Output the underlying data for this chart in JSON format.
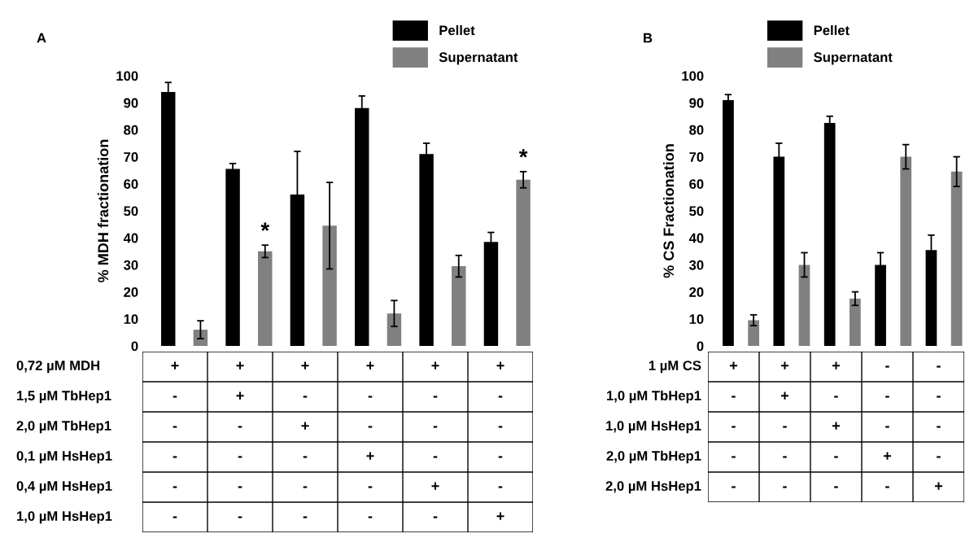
{
  "chart_data": [
    {
      "type": "bar",
      "title": "A",
      "ylabel": "% MDH fractionation",
      "categories": [
        null,
        null,
        null,
        null,
        null,
        null
      ],
      "ylim": [
        0,
        100
      ],
      "yticks": [
        0,
        10,
        20,
        30,
        40,
        50,
        60,
        70,
        80,
        90,
        100
      ],
      "grid": false,
      "legend": "top",
      "tick_labels": "y",
      "series": [
        {
          "name": "Pellet",
          "color": "#000000",
          "values": [
            94,
            65.5,
            56,
            88,
            71,
            38.5
          ],
          "errors": [
            3.5,
            2,
            16,
            4.5,
            4,
            3.5
          ]
        },
        {
          "name": "Supernatant",
          "color": "#808080",
          "values": [
            6,
            35,
            44.5,
            12,
            29.5,
            61.5
          ],
          "errors": [
            3.3,
            2.3,
            16,
            4.8,
            4,
            3
          ]
        }
      ],
      "annotations": [
        {
          "text": "*",
          "y": 37.3
        },
        {
          "text": "*",
          "y": 64.5
        },
        "0,72 µM MDH",
        "+",
        "+",
        "+",
        "+",
        "+",
        "+",
        "1,5 µM TbHep1",
        "-",
        "+",
        "-",
        "-",
        "-",
        "-",
        "2,0 µM TbHep1",
        "-",
        "-",
        "+",
        "-",
        "-",
        "-",
        "0,1 µM HsHep1",
        "-",
        "-",
        "-",
        "+",
        "-",
        "-",
        "0,4 µM HsHep1",
        "-",
        "-",
        "-",
        "-",
        "+",
        "-",
        "1,0 µM HsHep1",
        "-",
        "-",
        "-",
        "-",
        "-",
        "+"
      ]
    },
    {
      "type": "bar",
      "title": "B",
      "ylabel": "% CS Fractionation",
      "categories": [
        null,
        null,
        null,
        null,
        null
      ],
      "ylim": [
        0,
        100
      ],
      "yticks": [
        0,
        10,
        20,
        30,
        40,
        50,
        60,
        70,
        80,
        90,
        100
      ],
      "grid": false,
      "legend": "top",
      "tick_labels": "y",
      "series": [
        {
          "name": "Pellet",
          "color": "#000000",
          "values": [
            91,
            70,
            82.5,
            30,
            35.5
          ],
          "errors": [
            2,
            5,
            2.5,
            4.5,
            5.5
          ]
        },
        {
          "name": "Supernatant",
          "color": "#808080",
          "values": [
            9.5,
            30,
            17.5,
            70,
            64.5
          ],
          "errors": [
            2,
            4.5,
            2.5,
            4.5,
            5.5
          ]
        }
      ],
      "annotations": [
        "1 µM CS",
        "+",
        "+",
        "+",
        "-",
        "-",
        "1,0 µM TbHep1",
        "-",
        "+",
        "-",
        "-",
        "-",
        "1,0 µM HsHep1",
        "-",
        "-",
        "+",
        "-",
        "-",
        "2,0 µM TbHep1",
        "-",
        "-",
        "-",
        "+",
        "-",
        "2,0 µM HsHep1",
        "-",
        "-",
        "-",
        "-",
        "+"
      ]
    }
  ]
}
